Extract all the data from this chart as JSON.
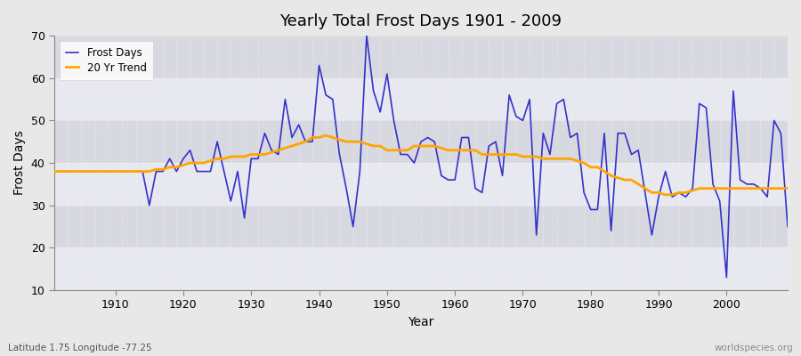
{
  "title": "Yearly Total Frost Days 1901 - 2009",
  "xlabel": "Year",
  "ylabel": "Frost Days",
  "subtitle": "Latitude 1.75 Longitude -77.25",
  "watermark": "worldspecies.org",
  "ylim": [
    10,
    70
  ],
  "yticks": [
    10,
    20,
    30,
    40,
    50,
    60,
    70
  ],
  "xlim": [
    1901,
    2009
  ],
  "xticks": [
    1910,
    1920,
    1930,
    1940,
    1950,
    1960,
    1970,
    1980,
    1990,
    2000
  ],
  "frost_color": "#3333cc",
  "trend_color": "#FFA500",
  "bg_color": "#e8e8e8",
  "plot_bg_color": "#e0e0e8",
  "band_color1": "#e8e8f0",
  "band_color2": "#d8d8e0",
  "frost_days": {
    "1901": 38,
    "1902": 38,
    "1903": 38,
    "1904": 38,
    "1905": 38,
    "1906": 38,
    "1907": 38,
    "1908": 38,
    "1909": 38,
    "1910": 38,
    "1911": 38,
    "1912": 38,
    "1913": 38,
    "1914": 38,
    "1915": 30,
    "1916": 38,
    "1917": 38,
    "1918": 41,
    "1919": 38,
    "1920": 41,
    "1921": 43,
    "1922": 38,
    "1923": 38,
    "1924": 38,
    "1925": 45,
    "1926": 38,
    "1927": 31,
    "1928": 38,
    "1929": 27,
    "1930": 41,
    "1931": 41,
    "1932": 47,
    "1933": 43,
    "1934": 42,
    "1935": 55,
    "1936": 46,
    "1937": 49,
    "1938": 45,
    "1939": 45,
    "1940": 63,
    "1941": 56,
    "1942": 55,
    "1943": 42,
    "1944": 34,
    "1945": 25,
    "1946": 38,
    "1947": 70,
    "1948": 57,
    "1949": 52,
    "1950": 61,
    "1951": 50,
    "1952": 42,
    "1953": 42,
    "1954": 40,
    "1955": 45,
    "1956": 46,
    "1957": 45,
    "1958": 37,
    "1959": 36,
    "1960": 36,
    "1961": 46,
    "1962": 46,
    "1963": 34,
    "1964": 33,
    "1965": 44,
    "1966": 45,
    "1967": 37,
    "1968": 56,
    "1969": 51,
    "1970": 50,
    "1971": 55,
    "1972": 23,
    "1973": 47,
    "1974": 42,
    "1975": 54,
    "1976": 55,
    "1977": 46,
    "1978": 47,
    "1979": 33,
    "1980": 29,
    "1981": 29,
    "1982": 47,
    "1983": 24,
    "1984": 47,
    "1985": 47,
    "1986": 42,
    "1987": 43,
    "1988": 33,
    "1989": 23,
    "1990": 32,
    "1991": 38,
    "1992": 32,
    "1993": 33,
    "1994": 32,
    "1995": 34,
    "1996": 54,
    "1997": 53,
    "1998": 35,
    "1999": 31,
    "2000": 13,
    "2001": 57,
    "2002": 36,
    "2003": 35,
    "2004": 35,
    "2005": 34,
    "2006": 32,
    "2007": 50,
    "2008": 47,
    "2009": 25
  },
  "trend_days": {
    "1901": 38,
    "1902": 38,
    "1903": 38,
    "1904": 38,
    "1905": 38,
    "1906": 38,
    "1907": 38,
    "1908": 38,
    "1909": 38,
    "1910": 38,
    "1911": 38,
    "1912": 38,
    "1913": 38,
    "1914": 38,
    "1915": 38,
    "1916": 38.5,
    "1917": 38.5,
    "1918": 39,
    "1919": 39,
    "1920": 39.5,
    "1921": 40,
    "1922": 40,
    "1923": 40,
    "1924": 40.5,
    "1925": 41,
    "1926": 41,
    "1927": 41.5,
    "1928": 41.5,
    "1929": 41.5,
    "1930": 42,
    "1931": 42,
    "1932": 42,
    "1933": 42.5,
    "1934": 43,
    "1935": 43.5,
    "1936": 44,
    "1937": 44.5,
    "1938": 45,
    "1939": 46,
    "1940": 46,
    "1941": 46.5,
    "1942": 46,
    "1943": 45.5,
    "1944": 45,
    "1945": 45,
    "1946": 45,
    "1947": 44.5,
    "1948": 44,
    "1949": 44,
    "1950": 43,
    "1951": 43,
    "1952": 43,
    "1953": 43,
    "1954": 44,
    "1955": 44,
    "1956": 44,
    "1957": 44,
    "1958": 43.5,
    "1959": 43,
    "1960": 43,
    "1961": 43,
    "1962": 43,
    "1963": 43,
    "1964": 42,
    "1965": 42,
    "1966": 42,
    "1967": 42,
    "1968": 42,
    "1969": 42,
    "1970": 41.5,
    "1971": 41.5,
    "1972": 41.5,
    "1973": 41,
    "1974": 41,
    "1975": 41,
    "1976": 41,
    "1977": 41,
    "1978": 40.5,
    "1979": 40,
    "1980": 39,
    "1981": 39,
    "1982": 38,
    "1983": 37,
    "1984": 36.5,
    "1985": 36,
    "1986": 36,
    "1987": 35,
    "1988": 34,
    "1989": 33,
    "1990": 33,
    "1991": 32.5,
    "1992": 32.5,
    "1993": 33,
    "1994": 33,
    "1995": 33.5,
    "1996": 34,
    "1997": 34,
    "1998": 34,
    "1999": 34,
    "2000": 34,
    "2001": 34,
    "2002": 34,
    "2003": 34,
    "2004": 34,
    "2005": 34,
    "2006": 34,
    "2007": 34,
    "2008": 34,
    "2009": 34
  }
}
